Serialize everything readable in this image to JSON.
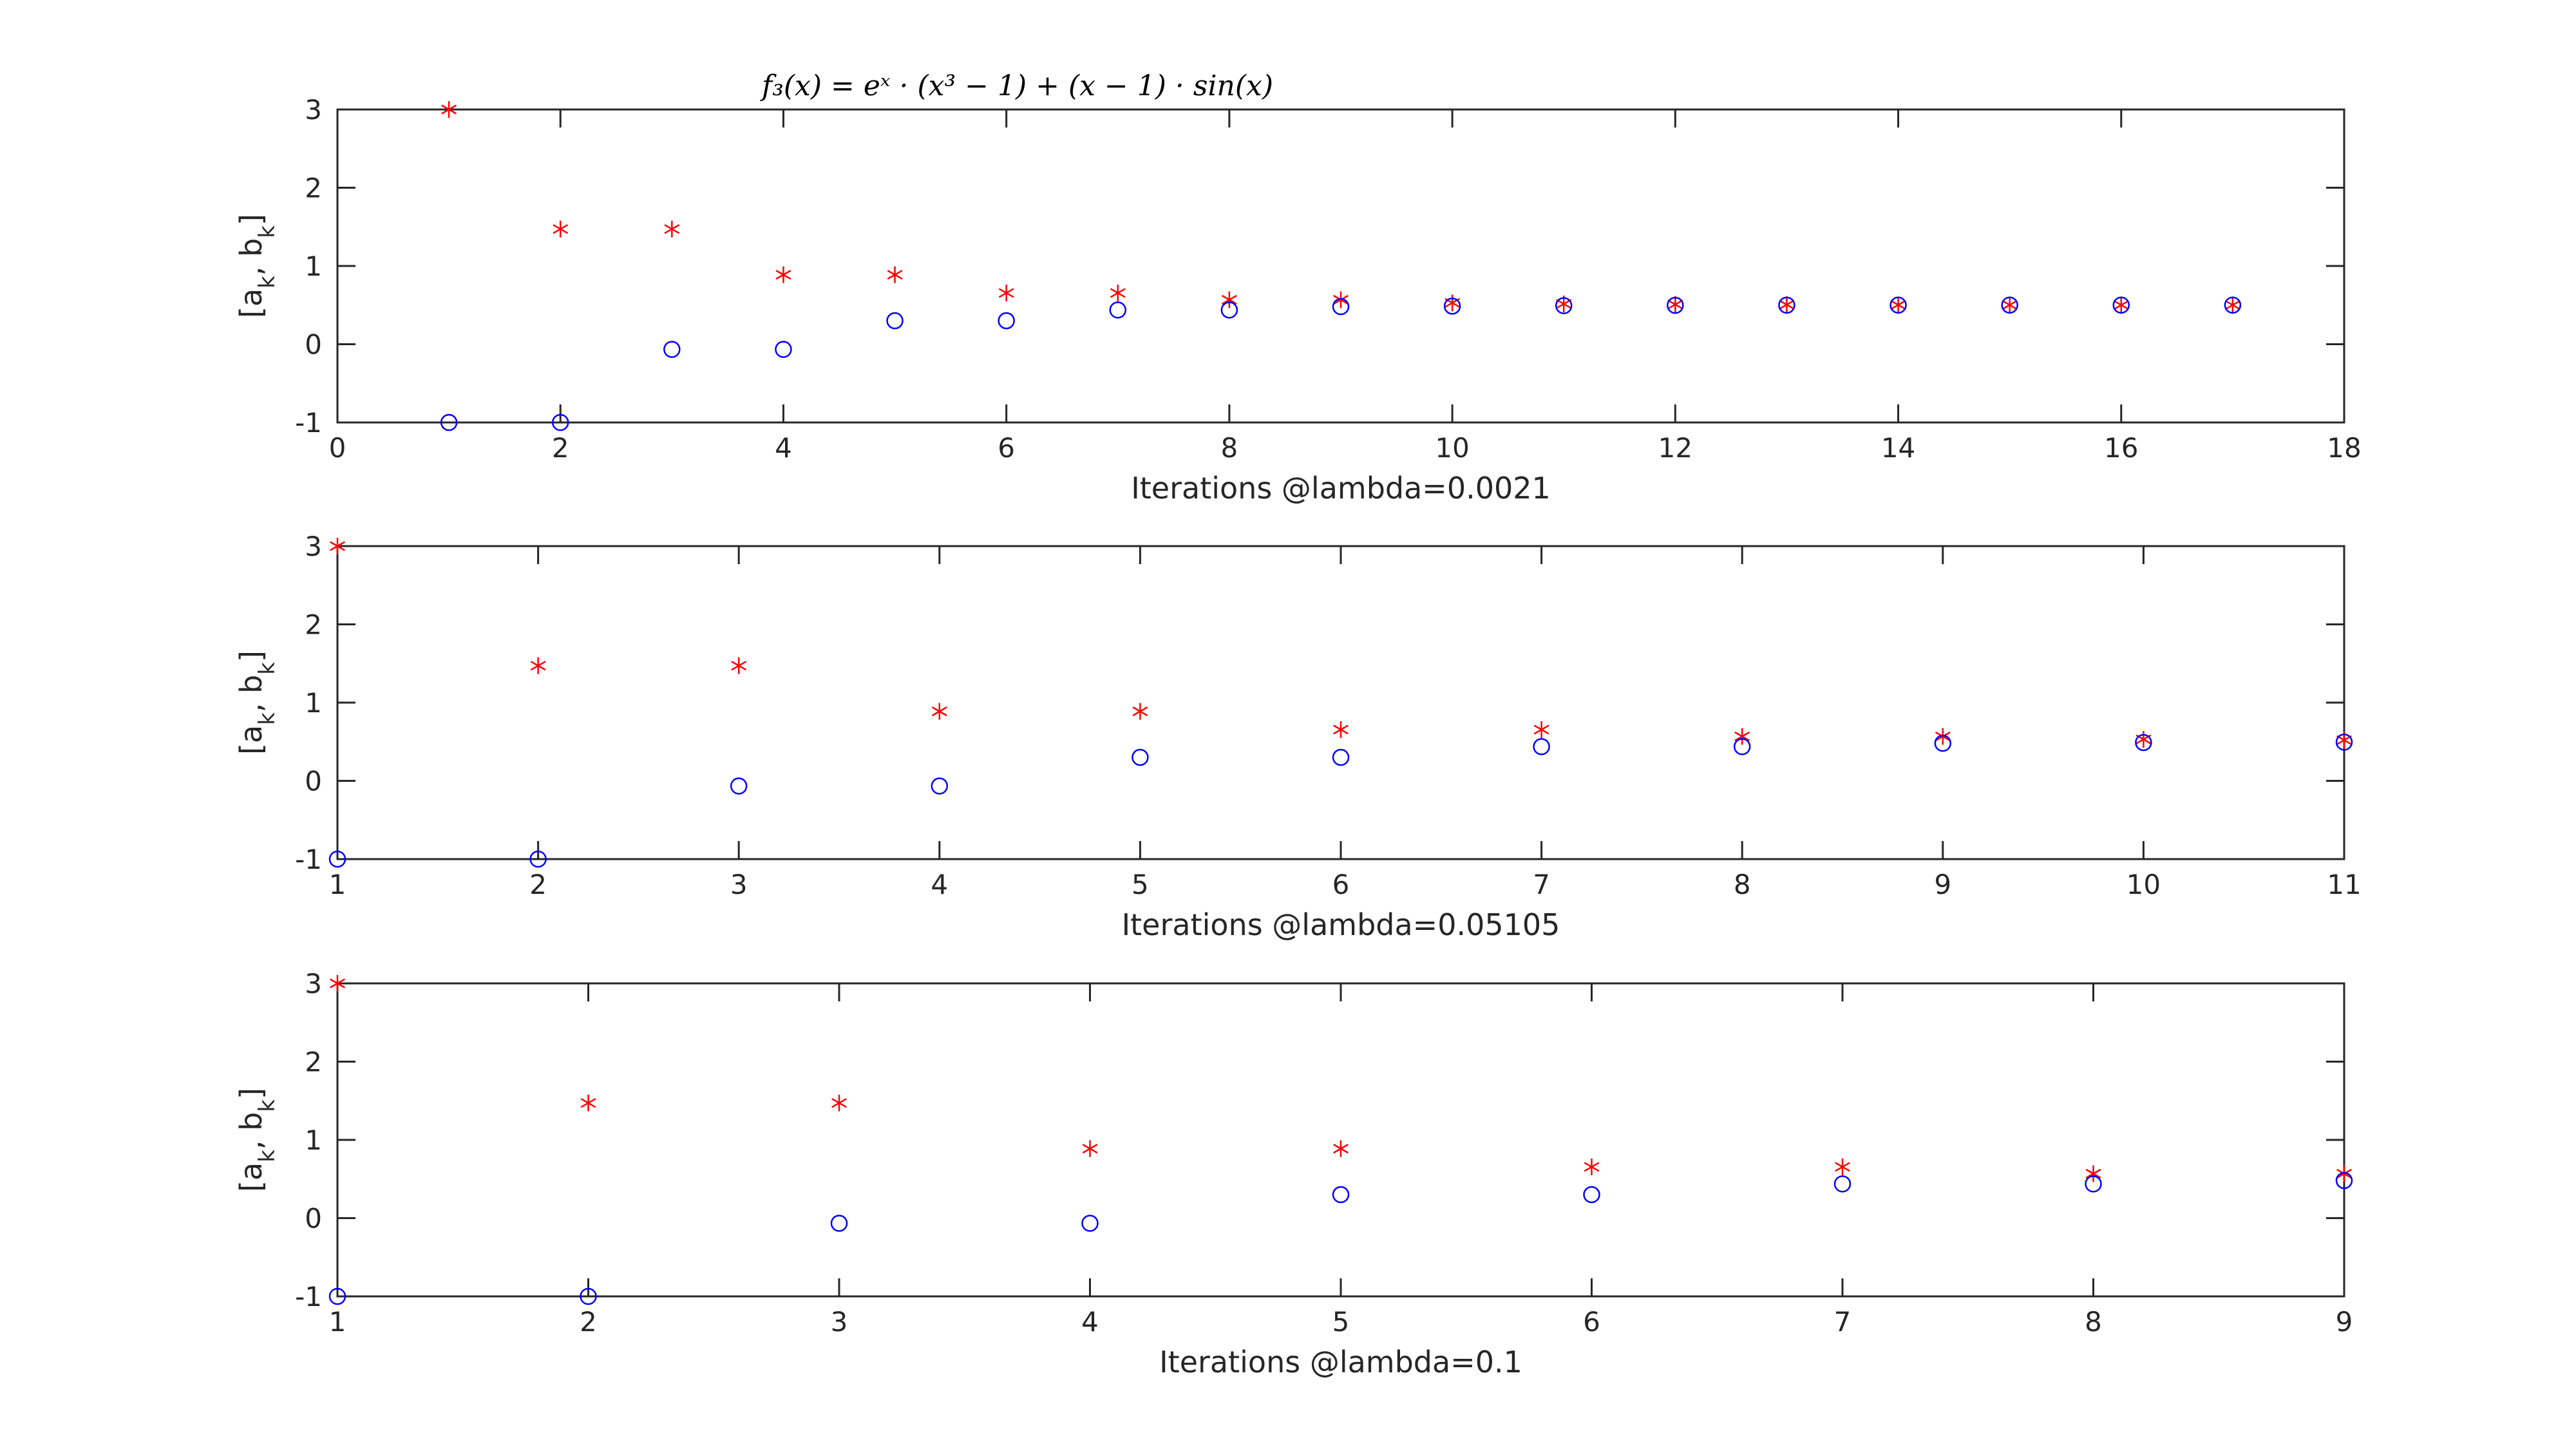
{
  "title_text": "f₃(x) = eˣ · (x³ − 1) + (x − 1) · sin(x)",
  "chart_data": [
    {
      "type": "scatter",
      "title": "f₃(x) = eˣ · (x³ − 1) + (x − 1) · sin(x)",
      "xlabel": "Iterations @lambda=0.0021",
      "ylabel": "[a_k, b_k]",
      "xlim": [
        0,
        18
      ],
      "ylim": [
        -1,
        3
      ],
      "xticks": [
        0,
        2,
        4,
        6,
        8,
        10,
        12,
        14,
        16,
        18
      ],
      "yticks": [
        -1,
        0,
        1,
        2,
        3
      ],
      "grid": false,
      "x": [
        1,
        2,
        3,
        4,
        5,
        6,
        7,
        8,
        9,
        10,
        11,
        12,
        13,
        14,
        15,
        16,
        17
      ],
      "series": [
        {
          "marker": "asterisk",
          "color": "#ff0000",
          "values": [
            3,
            1.472,
            1.472,
            0.888,
            0.888,
            0.655,
            0.655,
            0.568,
            0.568,
            0.528,
            0.515,
            0.508,
            0.505,
            0.502,
            0.501,
            0.5005,
            0.5003
          ]
        },
        {
          "marker": "circle",
          "color": "#0000ff",
          "values": [
            -1,
            -1,
            -0.066,
            -0.066,
            0.3,
            0.3,
            0.437,
            0.437,
            0.48,
            0.487,
            0.493,
            0.497,
            0.499,
            0.4995,
            0.4998,
            0.4999,
            0.5
          ]
        }
      ]
    },
    {
      "type": "scatter",
      "xlabel": "Iterations @lambda=0.05105",
      "ylabel": "[a_k, b_k]",
      "xlim": [
        1,
        11
      ],
      "ylim": [
        -1,
        3
      ],
      "xticks": [
        1,
        2,
        3,
        4,
        5,
        6,
        7,
        8,
        9,
        10,
        11
      ],
      "yticks": [
        -1,
        0,
        1,
        2,
        3
      ],
      "grid": false,
      "x": [
        1,
        2,
        3,
        4,
        5,
        6,
        7,
        8,
        9,
        10,
        11
      ],
      "series": [
        {
          "marker": "asterisk",
          "color": "#ff0000",
          "values": [
            3,
            1.472,
            1.472,
            0.888,
            0.888,
            0.655,
            0.655,
            0.568,
            0.568,
            0.53,
            0.52
          ]
        },
        {
          "marker": "circle",
          "color": "#0000ff",
          "values": [
            -1,
            -1,
            -0.066,
            -0.066,
            0.3,
            0.3,
            0.437,
            0.437,
            0.48,
            0.49,
            0.495
          ]
        }
      ]
    },
    {
      "type": "scatter",
      "xlabel": "Iterations @lambda=0.1",
      "ylabel": "[a_k, b_k]",
      "xlim": [
        1,
        9
      ],
      "ylim": [
        -1,
        3
      ],
      "xticks": [
        1,
        2,
        3,
        4,
        5,
        6,
        7,
        8,
        9
      ],
      "yticks": [
        -1,
        0,
        1,
        2,
        3
      ],
      "grid": false,
      "x": [
        1,
        2,
        3,
        4,
        5,
        6,
        7,
        8,
        9
      ],
      "series": [
        {
          "marker": "asterisk",
          "color": "#ff0000",
          "values": [
            3,
            1.472,
            1.472,
            0.888,
            0.888,
            0.655,
            0.655,
            0.568,
            0.568
          ]
        },
        {
          "marker": "circle",
          "color": "#0000ff",
          "values": [
            -1,
            -1,
            -0.066,
            -0.066,
            0.3,
            0.3,
            0.437,
            0.437,
            0.48
          ]
        }
      ]
    }
  ]
}
